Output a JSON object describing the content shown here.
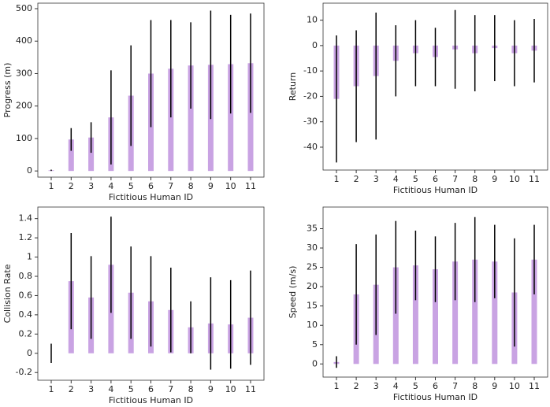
{
  "chart_data": [
    {
      "type": "bar",
      "xlabel": "Fictitious Human ID",
      "ylabel": "Progress (m)",
      "color": "#c9a3e3",
      "error_color": "#000000",
      "categories": [
        "1",
        "2",
        "3",
        "4",
        "5",
        "6",
        "7",
        "8",
        "9",
        "10",
        "11"
      ],
      "values": [
        2,
        97,
        103,
        165,
        232,
        300,
        315,
        325,
        327,
        329,
        332
      ],
      "errors": [
        2,
        35,
        47,
        145,
        155,
        165,
        150,
        133,
        167,
        152,
        153
      ],
      "ylim": [
        -19,
        517
      ],
      "yticks": [
        0,
        100,
        200,
        300,
        400,
        500
      ]
    },
    {
      "type": "bar",
      "xlabel": "Fictitious Human ID",
      "ylabel": "Return",
      "color": "#c9a3e3",
      "error_color": "#000000",
      "categories": [
        "1",
        "2",
        "3",
        "4",
        "5",
        "6",
        "7",
        "8",
        "9",
        "10",
        "11"
      ],
      "values": [
        -21,
        -16,
        -12,
        -6,
        -3,
        -4.5,
        -1.5,
        -3,
        -1,
        -3,
        -2
      ],
      "errors": [
        25,
        22,
        25,
        14,
        13,
        11.5,
        15.5,
        15,
        13,
        13,
        12.5
      ],
      "ylim": [
        -49,
        16.7
      ],
      "yticks": [
        -40,
        -30,
        -20,
        -10,
        0,
        10
      ]
    },
    {
      "type": "bar",
      "xlabel": "Fictitious Human ID",
      "ylabel": "Collision Rate",
      "color": "#c9a3e3",
      "error_color": "#000000",
      "categories": [
        "1",
        "2",
        "3",
        "4",
        "5",
        "6",
        "7",
        "8",
        "9",
        "10",
        "11"
      ],
      "values": [
        0,
        0.75,
        0.58,
        0.92,
        0.63,
        0.54,
        0.45,
        0.27,
        0.31,
        0.3,
        0.37
      ],
      "errors": [
        0.1,
        0.5,
        0.43,
        0.5,
        0.48,
        0.47,
        0.44,
        0.27,
        0.48,
        0.46,
        0.49
      ],
      "ylim": [
        -0.28,
        1.52
      ],
      "yticks": [
        -0.2,
        0,
        0.2,
        0.4,
        0.6,
        0.8,
        1.0,
        1.2,
        1.4
      ]
    },
    {
      "type": "bar",
      "xlabel": "Fictitious Human ID",
      "ylabel": "Speed (m/s)",
      "color": "#c9a3e3",
      "error_color": "#000000",
      "categories": [
        "1",
        "2",
        "3",
        "4",
        "5",
        "6",
        "7",
        "8",
        "9",
        "10",
        "11"
      ],
      "values": [
        0.5,
        18,
        20.5,
        25,
        25.5,
        24.5,
        26.5,
        27,
        26.5,
        18.5,
        27
      ],
      "errors": [
        1.5,
        13,
        13,
        12,
        9,
        8.5,
        10,
        11,
        9.5,
        14,
        9
      ],
      "ylim": [
        -3.4,
        40.6
      ],
      "yticks": [
        0,
        5,
        10,
        15,
        20,
        25,
        30,
        35
      ]
    }
  ]
}
